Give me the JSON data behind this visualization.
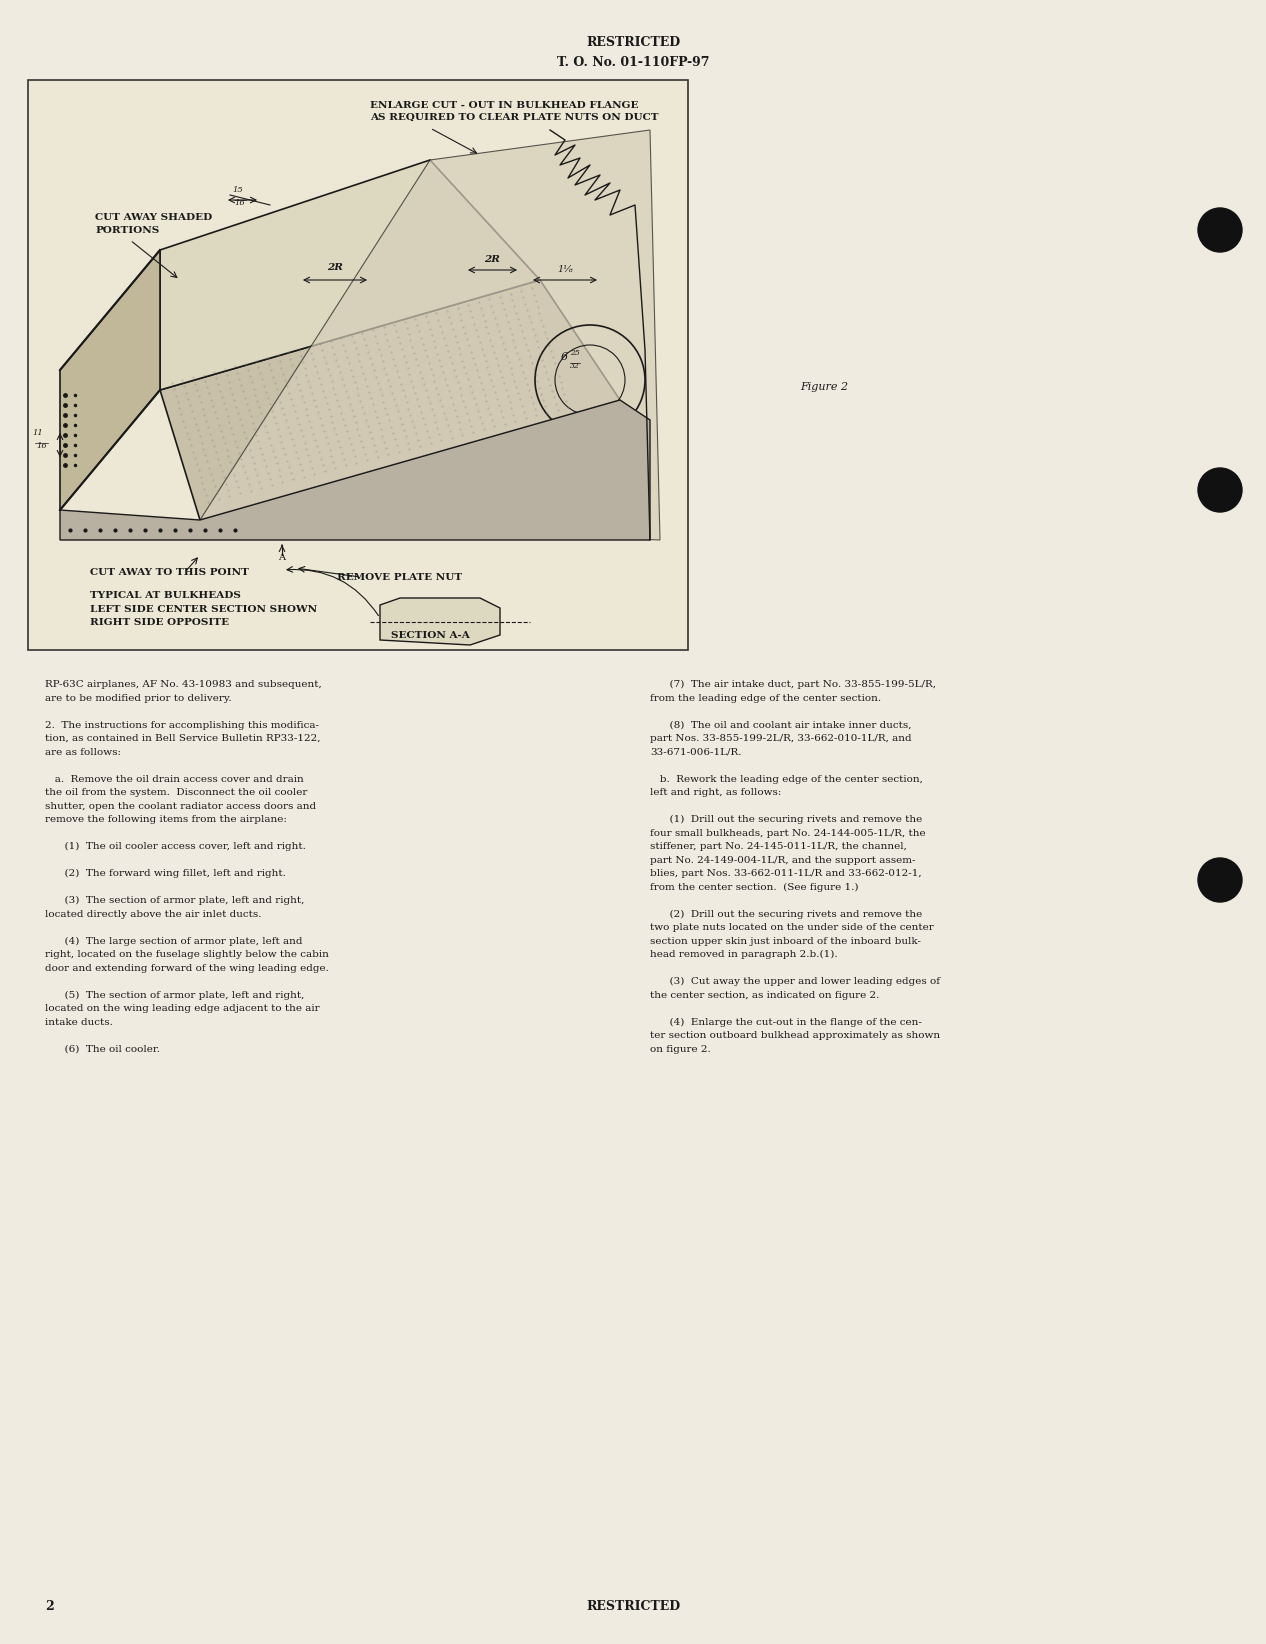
{
  "bg_color": "#f5f0e0",
  "page_bg": "#f0ebe0",
  "title_line1": "RESTRICTED",
  "title_line2": "T. O. No. 01-110FP-97",
  "figure_label": "Figure 2",
  "page_number": "2",
  "bottom_center": "RESTRICTED",
  "diagram_annotations": {
    "top_label1": "ENLARGE CUT-OUT IN BULKHEAD FLANGE",
    "top_label2": "AS REQUIRED TO CLEAR PLATE NUTS ON DUCT",
    "left_label1": "CUT AWAY SHADED",
    "left_label2": "PORTIONS",
    "dim_15_16": "15/16",
    "dim_2R_left": "2R",
    "dim_2R_right": "2R",
    "dim_1_8": "1 1/8",
    "dim_6_25_32": "6 25/32",
    "dim_11_16": "11/16",
    "remove_plate_nut": "REMOVE PLATE NUT",
    "cut_away_point": "CUT AWAY TO THIS POINT",
    "typical_bulkheads": "TYPICAL AT BULKHEADS",
    "left_side": "LEFT SIDE CENTER SECTION SHOWN",
    "right_side": "RIGHT SIDE OPPOSITE",
    "section_aa": "SECTION A-A"
  },
  "body_text_left": [
    "RP-63C airplanes, AF No. 43-10983 and subsequent,",
    "are to be modified prior to delivery.",
    "",
    "2.  The instructions for accomplishing this modifica-",
    "tion, as contained in Bell Service Bulletin RP33-122,",
    "are as follows:",
    "",
    "   a.  Remove the oil drain access cover and drain",
    "the oil from the system.  Disconnect the oil cooler",
    "shutter, open the coolant radiator access doors and",
    "remove the following items from the airplane:",
    "",
    "      (1)  The oil cooler access cover, left and right.",
    "",
    "      (2)  The forward wing fillet, left and right.",
    "",
    "      (3)  The section of armor plate, left and right,",
    "located directly above the air inlet ducts.",
    "",
    "      (4)  The large section of armor plate, left and",
    "right, located on the fuselage slightly below the cabin",
    "door and extending forward of the wing leading edge.",
    "",
    "      (5)  The section of armor plate, left and right,",
    "located on the wing leading edge adjacent to the air",
    "intake ducts.",
    "",
    "      (6)  The oil cooler."
  ],
  "body_text_right": [
    "      (7)  The air intake duct, part No. 33-855-199-5L/R,",
    "from the leading edge of the center section.",
    "",
    "      (8)  The oil and coolant air intake inner ducts,",
    "part Nos. 33-855-199-2L/R, 33-662-010-1L/R, and",
    "33-671-006-1L/R.",
    "",
    "   b.  Rework the leading edge of the center section,",
    "left and right, as follows:",
    "",
    "      (1)  Drill out the securing rivets and remove the",
    "four small bulkheads, part No. 24-144-005-1L/R, the",
    "stiffener, part No. 24-145-011-1L/R, the channel,",
    "part No. 24-149-004-1L/R, and the support assem-",
    "blies, part Nos. 33-662-011-1L/R and 33-662-012-1,",
    "from the center section.  (See figure 1.)",
    "",
    "      (2)  Drill out the securing rivets and remove the",
    "two plate nuts located on the under side of the center",
    "section upper skin just inboard of the inboard bulk-",
    "head removed in paragraph 2.b.(1).",
    "",
    "      (3)  Cut away the upper and lower leading edges of",
    "the center section, as indicated on figure 2.",
    "",
    "      (4)  Enlarge the cut-out in the flange of the cen-",
    "ter section outboard bulkhead approximately as shown",
    "on figure 2."
  ],
  "text_color": "#1a1a1a",
  "box_border_color": "#333333",
  "font_size_title": 9,
  "font_size_body": 7.5,
  "font_size_figure": 8,
  "font_size_annotation": 7
}
